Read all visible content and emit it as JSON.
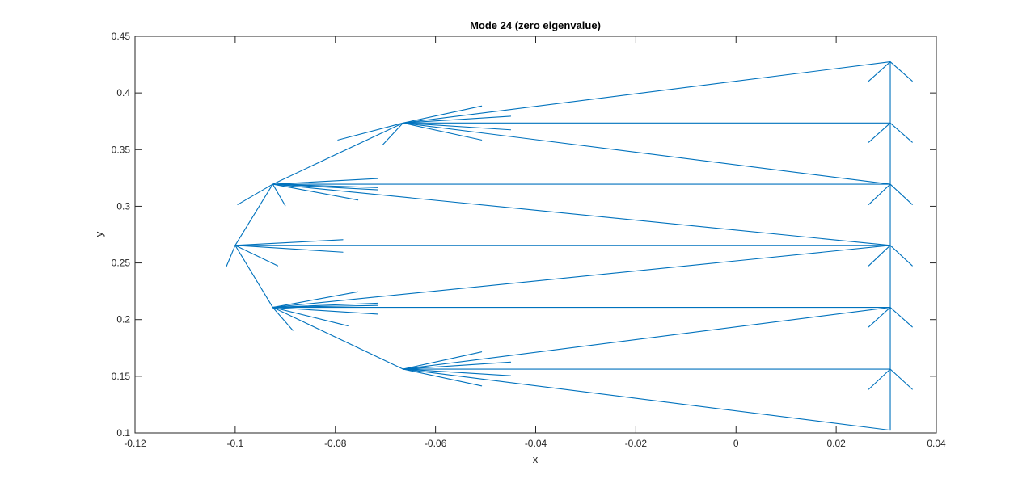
{
  "chart_data": {
    "type": "line",
    "title": "Mode 24 (zero eigenvalue)",
    "xlabel": "x",
    "ylabel": "y",
    "xlim": [
      -0.12,
      0.04
    ],
    "ylim": [
      0.1,
      0.45
    ],
    "xticks": [
      -0.12,
      -0.1,
      -0.08,
      -0.06,
      -0.04,
      -0.02,
      0,
      0.02,
      0.04
    ],
    "xtick_labels": [
      "-0.12",
      "-0.1",
      "-0.08",
      "-0.06",
      "-0.04",
      "-0.02",
      "0",
      "0.02",
      "0.04"
    ],
    "yticks": [
      0.1,
      0.15,
      0.2,
      0.25,
      0.3,
      0.35,
      0.4,
      0.45
    ],
    "ytick_labels": [
      "0.1",
      "0.15",
      "0.2",
      "0.25",
      "0.3",
      "0.35",
      "0.4",
      "0.45"
    ],
    "grid": false,
    "line_color": "#0072BD",
    "segments": [
      [
        [
          0.0308,
          0.4275
        ],
        [
          0.0308,
          0.1024
        ]
      ],
      [
        [
          -0.0665,
          0.3735
        ],
        [
          0.0308,
          0.4275
        ]
      ],
      [
        [
          -0.0665,
          0.3735
        ],
        [
          0.0308,
          0.3735
        ]
      ],
      [
        [
          -0.0665,
          0.3735
        ],
        [
          0.0308,
          0.3195
        ]
      ],
      [
        [
          -0.0925,
          0.3195
        ],
        [
          0.0308,
          0.3195
        ]
      ],
      [
        [
          -0.0925,
          0.3195
        ],
        [
          0.0308,
          0.2655
        ]
      ],
      [
        [
          -0.1,
          0.2655
        ],
        [
          0.0308,
          0.2655
        ]
      ],
      [
        [
          -0.0925,
          0.2108
        ],
        [
          0.0308,
          0.2655
        ]
      ],
      [
        [
          -0.0925,
          0.2108
        ],
        [
          0.0308,
          0.2108
        ]
      ],
      [
        [
          -0.0665,
          0.1563
        ],
        [
          0.0308,
          0.2108
        ]
      ],
      [
        [
          -0.0665,
          0.1563
        ],
        [
          0.0308,
          0.1563
        ]
      ],
      [
        [
          -0.0665,
          0.1563
        ],
        [
          0.0308,
          0.1024
        ]
      ],
      [
        [
          -0.0665,
          0.3735
        ],
        [
          -0.0925,
          0.3195
        ]
      ],
      [
        [
          -0.0925,
          0.3195
        ],
        [
          -0.1,
          0.2655
        ]
      ],
      [
        [
          -0.1,
          0.2655
        ],
        [
          -0.0925,
          0.2108
        ]
      ],
      [
        [
          -0.0925,
          0.2108
        ],
        [
          -0.0665,
          0.1563
        ]
      ]
    ],
    "arrowheads": [
      [
        [
          0.0308,
          0.4275
        ],
        [
          0.0265,
          0.4105
        ]
      ],
      [
        [
          0.0308,
          0.4275
        ],
        [
          0.0352,
          0.4105
        ]
      ],
      [
        [
          0.0308,
          0.3735
        ],
        [
          0.0265,
          0.3565
        ]
      ],
      [
        [
          0.0308,
          0.3735
        ],
        [
          0.0352,
          0.3565
        ]
      ],
      [
        [
          0.0308,
          0.3195
        ],
        [
          0.0265,
          0.3015
        ]
      ],
      [
        [
          0.0308,
          0.3195
        ],
        [
          0.0352,
          0.3015
        ]
      ],
      [
        [
          0.0308,
          0.2655
        ],
        [
          0.0265,
          0.2475
        ]
      ],
      [
        [
          0.0308,
          0.2655
        ],
        [
          0.0352,
          0.2475
        ]
      ],
      [
        [
          0.0308,
          0.2108
        ],
        [
          0.0265,
          0.1935
        ]
      ],
      [
        [
          0.0308,
          0.2108
        ],
        [
          0.0352,
          0.1935
        ]
      ],
      [
        [
          0.0308,
          0.1563
        ],
        [
          0.0265,
          0.1385
        ]
      ],
      [
        [
          0.0308,
          0.1563
        ],
        [
          0.0352,
          0.1385
        ]
      ],
      [
        [
          -0.0665,
          0.3735
        ],
        [
          -0.0795,
          0.3585
        ]
      ],
      [
        [
          -0.0665,
          0.3735
        ],
        [
          -0.0705,
          0.3545
        ]
      ],
      [
        [
          -0.0665,
          0.3735
        ],
        [
          -0.0508,
          0.3885
        ]
      ],
      [
        [
          -0.0665,
          0.3735
        ],
        [
          -0.0508,
          0.3585
        ]
      ],
      [
        [
          -0.0665,
          0.3735
        ],
        [
          -0.045,
          0.3795
        ]
      ],
      [
        [
          -0.0665,
          0.3735
        ],
        [
          -0.045,
          0.3675
        ]
      ],
      [
        [
          -0.0925,
          0.3195
        ],
        [
          -0.0995,
          0.3015
        ]
      ],
      [
        [
          -0.0925,
          0.3195
        ],
        [
          -0.09,
          0.3005
        ]
      ],
      [
        [
          -0.0925,
          0.3195
        ],
        [
          -0.0715,
          0.3245
        ]
      ],
      [
        [
          -0.0925,
          0.3195
        ],
        [
          -0.0715,
          0.3145
        ]
      ],
      [
        [
          -0.0925,
          0.3195
        ],
        [
          -0.0715,
          0.3165
        ]
      ],
      [
        [
          -0.0925,
          0.3195
        ],
        [
          -0.0755,
          0.3055
        ]
      ],
      [
        [
          -0.1,
          0.2655
        ],
        [
          -0.1018,
          0.2465
        ]
      ],
      [
        [
          -0.1,
          0.2655
        ],
        [
          -0.0915,
          0.2475
        ]
      ],
      [
        [
          -0.1,
          0.2655
        ],
        [
          -0.0785,
          0.2705
        ]
      ],
      [
        [
          -0.1,
          0.2655
        ],
        [
          -0.0785,
          0.2595
        ]
      ],
      [
        [
          -0.0925,
          0.2108
        ],
        [
          -0.0885,
          0.1905
        ]
      ],
      [
        [
          -0.0925,
          0.2108
        ],
        [
          -0.0775,
          0.1945
        ]
      ],
      [
        [
          -0.0925,
          0.2108
        ],
        [
          -0.0755,
          0.2245
        ]
      ],
      [
        [
          -0.0925,
          0.2108
        ],
        [
          -0.0715,
          0.2145
        ]
      ],
      [
        [
          -0.0925,
          0.2108
        ],
        [
          -0.0715,
          0.2125
        ]
      ],
      [
        [
          -0.0925,
          0.2108
        ],
        [
          -0.0715,
          0.2048
        ]
      ],
      [
        [
          -0.0665,
          0.1563
        ],
        [
          -0.0508,
          0.1715
        ]
      ],
      [
        [
          -0.0665,
          0.1563
        ],
        [
          -0.045,
          0.1625
        ]
      ],
      [
        [
          -0.0665,
          0.1563
        ],
        [
          -0.045,
          0.1505
        ]
      ],
      [
        [
          -0.0665,
          0.1563
        ],
        [
          -0.0508,
          0.1415
        ]
      ]
    ]
  }
}
